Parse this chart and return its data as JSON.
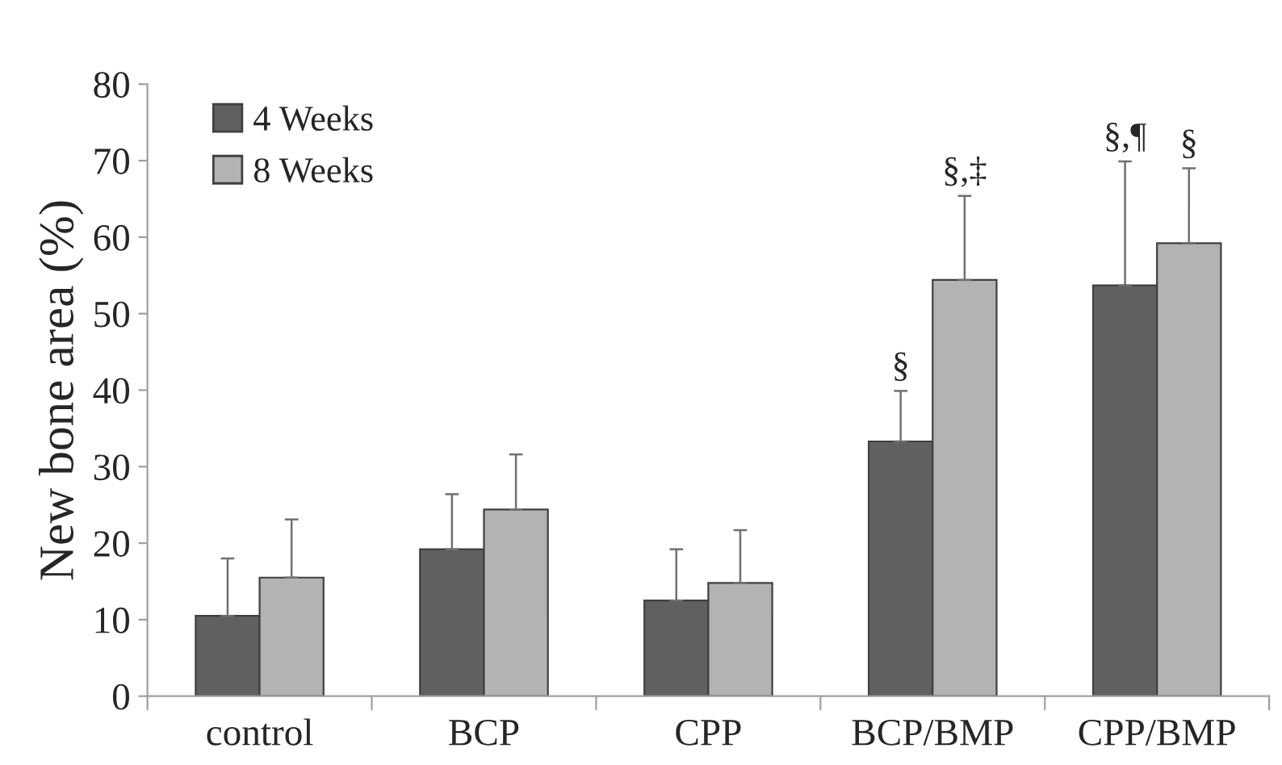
{
  "chart_data": {
    "type": "bar",
    "ylabel": "New bone area (%)",
    "categories": [
      "control",
      "BCP",
      "CPP",
      "BCP/BMP",
      "CPP/BMP"
    ],
    "series": [
      {
        "name": "4 Weeks",
        "color": "#606060",
        "values": [
          10.5,
          19.2,
          12.5,
          33.3,
          53.7
        ],
        "errors": [
          [
            10.5,
            18.0
          ],
          [
            19.2,
            26.4
          ],
          [
            12.5,
            19.2
          ],
          [
            33.3,
            39.9
          ],
          [
            53.7,
            69.9
          ]
        ]
      },
      {
        "name": "8 Weeks",
        "color": "#b3b3b3",
        "values": [
          15.5,
          24.4,
          14.8,
          54.4,
          59.2
        ],
        "errors": [
          [
            15.5,
            23.1
          ],
          [
            24.4,
            31.6
          ],
          [
            14.8,
            21.7
          ],
          [
            54.4,
            65.4
          ],
          [
            59.2,
            69.0
          ]
        ]
      }
    ],
    "annotations": [
      "§",
      "§,‡",
      "§,¶",
      "§"
    ],
    "ylim": [
      0,
      80
    ],
    "yticks": [
      0,
      10,
      20,
      30,
      40,
      50,
      60,
      70,
      80
    ],
    "grid": false,
    "legend": "top left"
  }
}
